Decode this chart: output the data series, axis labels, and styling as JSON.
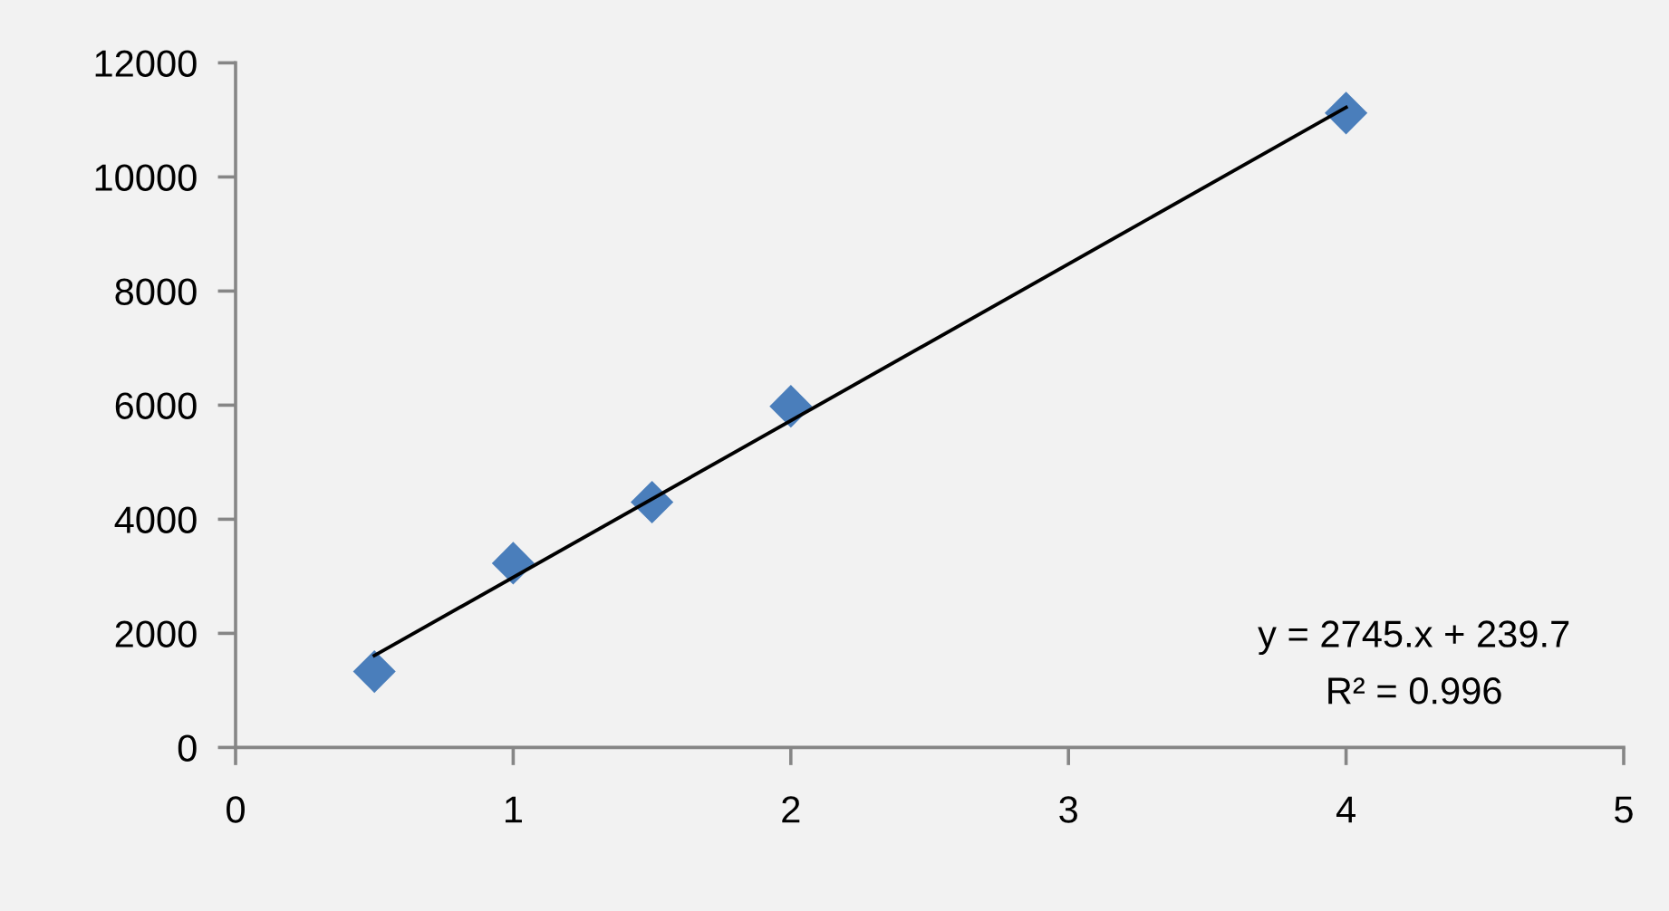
{
  "chart_data": {
    "type": "scatter",
    "x": [
      0.5,
      1,
      1.5,
      2,
      4
    ],
    "series": [
      {
        "color": "#4a7ebb",
        "marker": "diamond",
        "values": [
          1330,
          3230,
          4300,
          5980,
          11120
        ]
      },
      {
        "type": "line",
        "x": [
          0.5,
          4
        ],
        "values": [
          1610,
          11220
        ],
        "color": "#000000",
        "line_style": "solid",
        "marker": "none"
      }
    ],
    "xlim": [
      0,
      5
    ],
    "xticks": [
      0,
      1,
      2,
      3,
      4,
      5
    ],
    "ylim": [
      0,
      12000
    ],
    "yticks": [
      0,
      2000,
      4000,
      6000,
      8000,
      10000,
      12000
    ],
    "grid": false,
    "annotations": [
      "y = 2745.x + 239.7",
      "R² = 0.996"
    ]
  }
}
